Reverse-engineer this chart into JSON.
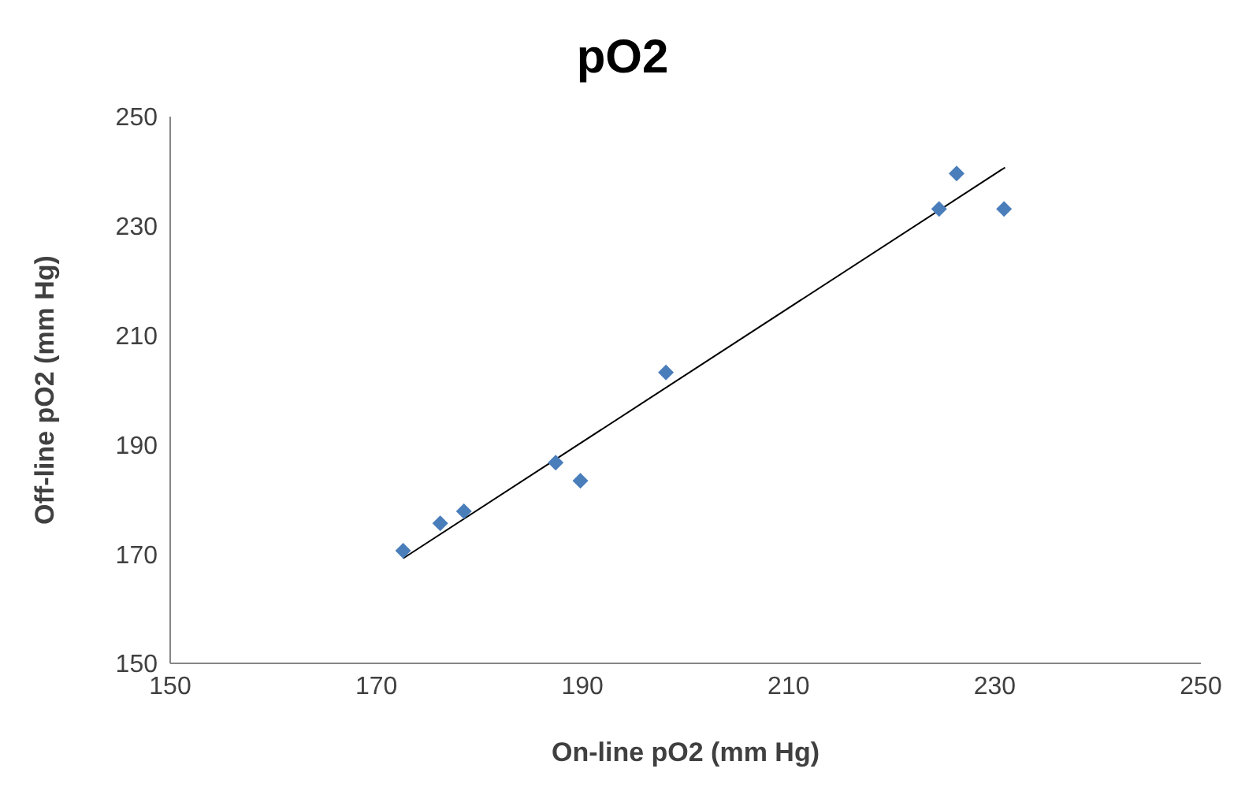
{
  "chart_data": {
    "type": "scatter",
    "title": "pO2",
    "xlabel": "On-line pO2 (mm Hg)",
    "ylabel": "Off-line pO2 (mm Hg)",
    "xlim": [
      150,
      250
    ],
    "xticks": [
      150,
      170,
      190,
      210,
      230,
      250
    ],
    "ylim": [
      150,
      250
    ],
    "yticks": [
      150,
      170,
      190,
      210,
      230,
      250
    ],
    "grid": false,
    "marker": "diamond",
    "series": [
      {
        "color": "#4a7ebb",
        "x": [
          172.6,
          176.2,
          178.5,
          187.4,
          189.8,
          198.1,
          224.6,
          226.3,
          230.9
        ],
        "values": [
          170.6,
          175.6,
          177.8,
          186.7,
          183.4,
          203.2,
          233.1,
          239.6,
          233.1
        ]
      },
      {
        "type": "line",
        "color": "#000000",
        "x": [
          172.6,
          231.0
        ],
        "values": [
          169.2,
          240.7
        ],
        "marker": "none",
        "line_style": "solid"
      }
    ]
  }
}
